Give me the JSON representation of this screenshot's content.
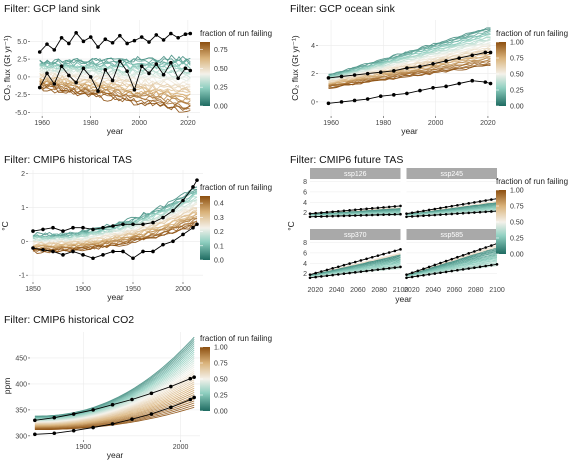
{
  "chart_data": [
    {
      "type": "line",
      "title": "Filter: GCP land sink",
      "xlabel": "year",
      "ylabel": "CO₂ flux (Gt yr⁻¹)",
      "xlim": [
        1955,
        2025
      ],
      "ylim": [
        -5.5,
        8
      ],
      "xticks": [
        1960,
        1980,
        2000,
        2020
      ],
      "yticks": [
        -5.0,
        -2.5,
        0.0,
        2.5,
        5.0
      ],
      "legend": {
        "title": "fraction of run failing",
        "ticks": [
          "0.00",
          "0.25",
          "0.50",
          "0.75"
        ],
        "range": [
          0,
          0.85
        ]
      },
      "ensemble": {
        "x_start": 1959,
        "x_end": 2021,
        "top_start": 2.2,
        "top_end": 2.7,
        "bottom_start": -1.5,
        "bottom_end": -4.8,
        "wiggle": 0.9
      },
      "series": [
        {
          "name": "",
          "x": [
            1959,
            1962,
            1965,
            1968,
            1971,
            1974,
            1977,
            1980,
            1983,
            1986,
            1989,
            1992,
            1995,
            1998,
            2001,
            2004,
            2007,
            2010,
            2013,
            2016,
            2019,
            2021
          ],
          "y": [
            3.5,
            4.6,
            3.8,
            5.5,
            4.7,
            6.2,
            5.0,
            5.6,
            4.2,
            5.3,
            4.8,
            5.8,
            4.7,
            5.1,
            5.6,
            4.9,
            5.9,
            5.2,
            6.1,
            5.5,
            6.0,
            6.1
          ]
        },
        {
          "name": "",
          "x": [
            1959,
            1962,
            1965,
            1968,
            1971,
            1974,
            1977,
            1980,
            1983,
            1986,
            1989,
            1992,
            1995,
            1998,
            2001,
            2004,
            2007,
            2010,
            2013,
            2016,
            2019,
            2021
          ],
          "y": [
            -1.5,
            0.5,
            -1.0,
            1.5,
            0.2,
            -0.8,
            1.2,
            0.0,
            -2.0,
            1.0,
            -0.5,
            2.2,
            0.8,
            -1.8,
            1.5,
            0.5,
            1.8,
            0.3,
            2.0,
            -0.2,
            1.2,
            0.9
          ]
        }
      ]
    },
    {
      "type": "line",
      "title": "Filter: GCP ocean sink",
      "xlabel": "year",
      "ylabel": "CO₂ flux (Gt yr⁻¹)",
      "xlim": [
        1955,
        2025
      ],
      "ylim": [
        -1,
        5.8
      ],
      "xticks": [
        1960,
        1980,
        2000,
        2020
      ],
      "yticks": [
        0,
        2,
        4
      ],
      "legend": {
        "title": "fraction of run failing",
        "ticks": [
          "0.00",
          "0.25",
          "0.50",
          "0.75",
          "1.00"
        ],
        "range": [
          0,
          1
        ]
      },
      "ensemble": {
        "x_start": 1959,
        "x_end": 2021,
        "top_start": 1.9,
        "top_end": 5.3,
        "bottom_start": 1.0,
        "bottom_end": 2.6,
        "wiggle": 0.15
      },
      "series": [
        {
          "name": "",
          "x": [
            1959,
            1964,
            1969,
            1974,
            1979,
            1984,
            1989,
            1994,
            1999,
            2004,
            2009,
            2014,
            2019,
            2021
          ],
          "y": [
            1.7,
            1.8,
            1.9,
            2.0,
            2.1,
            2.2,
            2.4,
            2.5,
            2.7,
            2.9,
            3.1,
            3.3,
            3.5,
            3.5
          ]
        },
        {
          "name": "",
          "x": [
            1959,
            1964,
            1969,
            1974,
            1979,
            1984,
            1989,
            1994,
            1999,
            2004,
            2009,
            2014,
            2019,
            2021
          ],
          "y": [
            -0.1,
            0.0,
            0.1,
            0.2,
            0.4,
            0.5,
            0.6,
            0.8,
            1.0,
            1.1,
            1.3,
            1.5,
            1.4,
            1.3
          ]
        }
      ]
    },
    {
      "type": "line",
      "title": "Filter: CMIP6 historical TAS",
      "xlabel": "year",
      "ylabel": "°C",
      "xlim": [
        1845,
        2020
      ],
      "ylim": [
        -1.2,
        2.1
      ],
      "xticks": [
        1850,
        1900,
        1950,
        2000
      ],
      "yticks": [
        -1,
        0,
        1,
        2
      ],
      "legend": {
        "title": "fraction of run failing",
        "ticks": [
          "0.0",
          "0.1",
          "0.2",
          "0.3",
          "0.4"
        ],
        "range": [
          0,
          0.45
        ]
      },
      "ensemble": {
        "x_start": 1850,
        "x_end": 2014,
        "top_start": 0.2,
        "top_end": 1.6,
        "bottom_start": -0.3,
        "bottom_end": 0.5,
        "wiggle": 0.12
      },
      "series": [
        {
          "name": "",
          "x": [
            1850,
            1860,
            1870,
            1880,
            1890,
            1900,
            1910,
            1920,
            1930,
            1940,
            1950,
            1960,
            1970,
            1980,
            1990,
            2000,
            2010,
            2014
          ],
          "y": [
            0.3,
            0.35,
            0.4,
            0.3,
            0.4,
            0.4,
            0.35,
            0.4,
            0.45,
            0.5,
            0.5,
            0.5,
            0.55,
            0.7,
            0.9,
            1.2,
            1.6,
            1.8
          ]
        },
        {
          "name": "",
          "x": [
            1850,
            1860,
            1870,
            1880,
            1890,
            1900,
            1910,
            1920,
            1930,
            1940,
            1950,
            1960,
            1970,
            1980,
            1990,
            2000,
            2010,
            2014
          ],
          "y": [
            -0.2,
            -0.25,
            -0.3,
            -0.4,
            -0.3,
            -0.4,
            -0.5,
            -0.4,
            -0.3,
            -0.3,
            -0.5,
            -0.3,
            -0.3,
            -0.1,
            0.0,
            0.2,
            0.4,
            0.5
          ]
        }
      ]
    },
    {
      "type": "line",
      "title": "Filter: CMIP6 future TAS",
      "xlabel": "year",
      "ylabel": "°C",
      "xlim": [
        2015,
        2100
      ],
      "ylim": [
        0,
        8.5
      ],
      "xticks": [
        2020,
        2040,
        2060,
        2080,
        2100
      ],
      "yticks": [
        2,
        4,
        6,
        8
      ],
      "legend": {
        "title": "fraction of run failing",
        "ticks": [
          "0.00",
          "0.25",
          "0.50",
          "0.75",
          "1.00"
        ],
        "range": [
          0,
          1
        ]
      },
      "facets": [
        {
          "label": "ssp126",
          "top_end": 3.0,
          "bottom_end": 1.5,
          "upper_line": [
            1.8,
            3.3
          ],
          "lower_line": [
            1.2,
            1.7
          ]
        },
        {
          "label": "ssp245",
          "top_end": 4.2,
          "bottom_end": 2.2,
          "upper_line": [
            1.8,
            4.7
          ],
          "lower_line": [
            1.2,
            2.3
          ]
        },
        {
          "label": "ssp370",
          "top_end": 6.0,
          "bottom_end": 3.0,
          "upper_line": [
            1.8,
            6.7
          ],
          "lower_line": [
            1.2,
            3.3
          ]
        },
        {
          "label": "ssp585",
          "top_end": 7.5,
          "bottom_end": 3.5,
          "upper_line": [
            1.8,
            7.8
          ],
          "lower_line": [
            1.2,
            3.8
          ]
        }
      ]
    },
    {
      "type": "line",
      "title": "Filter: CMIP6 historical CO2",
      "xlabel": "year",
      "ylabel": "ppm",
      "xlim": [
        1845,
        2020
      ],
      "ylim": [
        292,
        500
      ],
      "xticks": [
        1900,
        2000
      ],
      "yticks": [
        300,
        350,
        400,
        450
      ],
      "legend": {
        "title": "fraction of run failing",
        "ticks": [
          "0.00",
          "0.25",
          "0.50",
          "0.75",
          "1.00"
        ],
        "range": [
          0,
          1
        ]
      },
      "ensemble": {
        "x_start": 1850,
        "x_end": 2014,
        "top_start": 338,
        "top_end": 490,
        "bottom_start": 312,
        "bottom_end": 355,
        "wiggle": 0
      },
      "series": [
        {
          "name": "",
          "x": [
            1850,
            1870,
            1890,
            1910,
            1930,
            1950,
            1970,
            1990,
            2010,
            2014
          ],
          "y": [
            330,
            335,
            342,
            350,
            360,
            370,
            382,
            395,
            410,
            413
          ]
        },
        {
          "name": "",
          "x": [
            1850,
            1870,
            1890,
            1910,
            1930,
            1950,
            1970,
            1990,
            2010,
            2014
          ],
          "y": [
            303,
            305,
            310,
            316,
            323,
            332,
            342,
            355,
            370,
            374
          ]
        }
      ]
    }
  ]
}
